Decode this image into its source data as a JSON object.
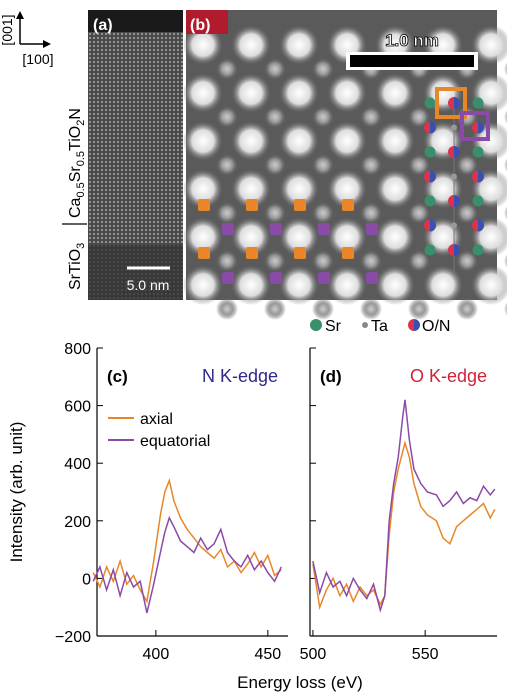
{
  "images": {
    "axes": {
      "vertical": "[001]",
      "horizontal": "[100]"
    },
    "substrate": [
      "SrTiO",
      "3"
    ],
    "film": [
      "Ca",
      "0.5",
      "Sr",
      "0.5",
      "TiO",
      "2",
      "N"
    ],
    "panel_a": {
      "label": "(a)",
      "scale": "5.0 nm"
    },
    "panel_b": {
      "label": "(b)",
      "scale": "1.0 nm"
    },
    "legend": [
      "Sr",
      "Ta",
      "O/N"
    ]
  },
  "xlabel": "Energy loss (eV)",
  "ylabel": "Intensity (arb. unit)",
  "chart_data": [
    {
      "type": "line",
      "panel": "(c)",
      "title": "N K-edge",
      "title_color": "#2e2a8a",
      "x": [
        372,
        375,
        378,
        381,
        384,
        387,
        390,
        393,
        396,
        399,
        402,
        404,
        406,
        408,
        411,
        414,
        417,
        420,
        423,
        426,
        429,
        432,
        435,
        438,
        441,
        444,
        447,
        450,
        453,
        456
      ],
      "series": [
        {
          "name": "axial",
          "color": "#e8872a",
          "values": [
            20,
            -30,
            40,
            -10,
            60,
            -20,
            10,
            -40,
            -80,
            60,
            220,
            300,
            340,
            270,
            210,
            170,
            140,
            110,
            90,
            70,
            100,
            40,
            60,
            20,
            50,
            90,
            40,
            80,
            10,
            30
          ]
        },
        {
          "name": "equatorial",
          "color": "#8a4aa8",
          "values": [
            -10,
            40,
            -40,
            30,
            -60,
            20,
            -30,
            -10,
            -120,
            -20,
            90,
            160,
            210,
            180,
            130,
            110,
            90,
            140,
            100,
            120,
            170,
            90,
            60,
            40,
            80,
            30,
            60,
            20,
            -10,
            40
          ]
        }
      ],
      "xlim": [
        373.7,
        459
      ],
      "ylim": [
        -200,
        800
      ],
      "xticks": [
        400,
        450
      ],
      "yticks": [
        {
          "value": -200,
          "label": "−200"
        },
        0,
        200,
        400,
        600,
        800
      ]
    },
    {
      "type": "line",
      "panel": "(d)",
      "title": "O K-edge",
      "title_color": "#d0233a",
      "x": [
        500,
        503,
        506,
        509,
        512,
        515,
        518,
        521,
        524,
        527,
        530,
        532,
        534,
        536,
        538,
        540,
        541,
        543,
        545,
        548,
        551,
        555,
        558,
        561,
        564,
        567,
        570,
        573,
        576,
        579,
        581
      ],
      "series": [
        {
          "name": "axial",
          "color": "#e8872a",
          "values": [
            50,
            -100,
            -40,
            0,
            -60,
            -20,
            -80,
            -30,
            -60,
            -40,
            -90,
            -60,
            150,
            300,
            380,
            440,
            470,
            420,
            330,
            250,
            220,
            200,
            140,
            120,
            180,
            200,
            220,
            240,
            260,
            210,
            240
          ]
        },
        {
          "name": "equatorial",
          "color": "#8a4aa8",
          "values": [
            60,
            -50,
            20,
            -30,
            -10,
            -60,
            0,
            -40,
            -70,
            -20,
            -110,
            -60,
            200,
            330,
            420,
            560,
            620,
            480,
            380,
            330,
            300,
            290,
            250,
            270,
            300,
            260,
            280,
            270,
            320,
            290,
            310
          ]
        }
      ],
      "xlim": [
        498.7,
        582
      ],
      "ylim": [
        -200,
        800
      ],
      "xticks": [
        500,
        550
      ],
      "yticks": [
        -200,
        0,
        200,
        400,
        600,
        800
      ]
    }
  ]
}
